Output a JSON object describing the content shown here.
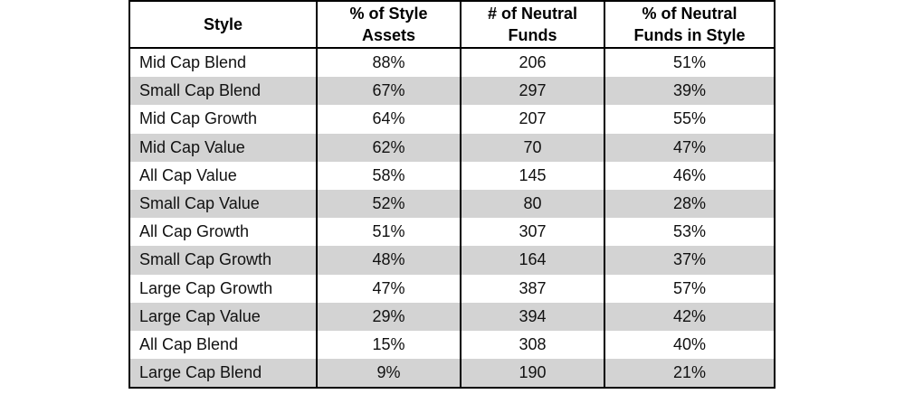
{
  "table": {
    "header": [
      [
        "Style"
      ],
      [
        "% of Style",
        "Assets"
      ],
      [
        "# of Neutral",
        "Funds"
      ],
      [
        "% of Neutral",
        "Funds in Style"
      ]
    ],
    "rows": [
      [
        "Mid Cap Blend",
        "88%",
        "206",
        "51%"
      ],
      [
        "Small Cap Blend",
        "67%",
        "297",
        "39%"
      ],
      [
        "Mid Cap Growth",
        "64%",
        "207",
        "55%"
      ],
      [
        "Mid Cap Value",
        "62%",
        "70",
        "47%"
      ],
      [
        "All Cap Value",
        "58%",
        "145",
        "46%"
      ],
      [
        "Small Cap Value",
        "52%",
        "80",
        "28%"
      ],
      [
        "All Cap Growth",
        "51%",
        "307",
        "53%"
      ],
      [
        "Small Cap Growth",
        "48%",
        "164",
        "37%"
      ],
      [
        "Large Cap Growth",
        "47%",
        "387",
        "57%"
      ],
      [
        "Large Cap Value",
        "29%",
        "394",
        "42%"
      ],
      [
        "All Cap Blend",
        "15%",
        "308",
        "40%"
      ],
      [
        "Large Cap Blend",
        "9%",
        "190",
        "21%"
      ]
    ]
  }
}
